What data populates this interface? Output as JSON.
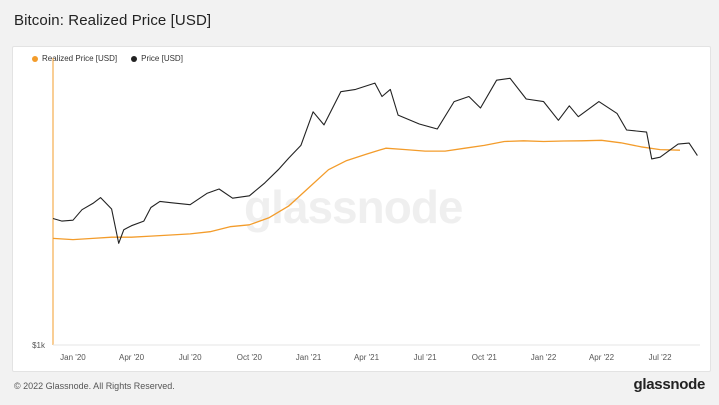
{
  "title": "Bitcoin: Realized Price [USD]",
  "footer": "© 2022 Glassnode. All Rights Reserved.",
  "brand": "glassnode",
  "watermark": "glassnode",
  "colors": {
    "realized": "#f39c2b",
    "price": "#222222",
    "grid": "#eeeeee",
    "axis_text": "#555555"
  },
  "chart_data": {
    "type": "line",
    "title": "Bitcoin: Realized Price [USD]",
    "xlabel": "",
    "ylabel": "",
    "y_scale": "log",
    "ylim": [
      1000,
      80000
    ],
    "y_ticks": [
      {
        "value": 1000,
        "label": "$1k"
      }
    ],
    "xlim": [
      "2019-12-01",
      "2022-09-01"
    ],
    "x_ticks": [
      {
        "date": "2020-01-01",
        "label": "Jan '20"
      },
      {
        "date": "2020-04-01",
        "label": "Apr '20"
      },
      {
        "date": "2020-07-01",
        "label": "Jul '20"
      },
      {
        "date": "2020-10-01",
        "label": "Oct '20"
      },
      {
        "date": "2021-01-01",
        "label": "Jan '21"
      },
      {
        "date": "2021-04-01",
        "label": "Apr '21"
      },
      {
        "date": "2021-07-01",
        "label": "Jul '21"
      },
      {
        "date": "2021-10-01",
        "label": "Oct '21"
      },
      {
        "date": "2022-01-01",
        "label": "Jan '22"
      },
      {
        "date": "2022-04-01",
        "label": "Apr '22"
      },
      {
        "date": "2022-07-01",
        "label": "Jul '22"
      }
    ],
    "legend_position": "top-left",
    "series": [
      {
        "name": "Realized Price [USD]",
        "color": "#f39c2b",
        "points": [
          [
            "2019-12-01",
            5400
          ],
          [
            "2020-01-01",
            5300
          ],
          [
            "2020-02-01",
            5400
          ],
          [
            "2020-03-01",
            5500
          ],
          [
            "2020-04-01",
            5500
          ],
          [
            "2020-05-01",
            5600
          ],
          [
            "2020-06-01",
            5700
          ],
          [
            "2020-07-01",
            5800
          ],
          [
            "2020-08-01",
            6000
          ],
          [
            "2020-09-01",
            6500
          ],
          [
            "2020-10-01",
            6700
          ],
          [
            "2020-11-01",
            7500
          ],
          [
            "2020-12-01",
            9000
          ],
          [
            "2021-01-01",
            12000
          ],
          [
            "2021-02-01",
            16000
          ],
          [
            "2021-03-01",
            18500
          ],
          [
            "2021-04-01",
            20500
          ],
          [
            "2021-05-01",
            22500
          ],
          [
            "2021-06-01",
            22000
          ],
          [
            "2021-07-01",
            21500
          ],
          [
            "2021-08-01",
            21500
          ],
          [
            "2021-09-01",
            22500
          ],
          [
            "2021-10-01",
            23500
          ],
          [
            "2021-11-01",
            25000
          ],
          [
            "2021-12-01",
            25300
          ],
          [
            "2022-01-01",
            25000
          ],
          [
            "2022-02-01",
            25200
          ],
          [
            "2022-03-01",
            25300
          ],
          [
            "2022-04-01",
            25500
          ],
          [
            "2022-05-01",
            24500
          ],
          [
            "2022-06-01",
            23000
          ],
          [
            "2022-07-01",
            22000
          ],
          [
            "2022-08-01",
            21800
          ]
        ]
      },
      {
        "name": "Price [USD]",
        "color": "#222222",
        "points": [
          [
            "2019-12-01",
            7400
          ],
          [
            "2019-12-15",
            7100
          ],
          [
            "2020-01-01",
            7200
          ],
          [
            "2020-01-15",
            8500
          ],
          [
            "2020-02-01",
            9400
          ],
          [
            "2020-02-13",
            10300
          ],
          [
            "2020-03-01",
            8600
          ],
          [
            "2020-03-12",
            5000
          ],
          [
            "2020-03-20",
            6200
          ],
          [
            "2020-04-01",
            6600
          ],
          [
            "2020-04-20",
            7100
          ],
          [
            "2020-05-01",
            8800
          ],
          [
            "2020-05-15",
            9700
          ],
          [
            "2020-06-01",
            9500
          ],
          [
            "2020-07-01",
            9200
          ],
          [
            "2020-07-27",
            11000
          ],
          [
            "2020-08-15",
            11800
          ],
          [
            "2020-09-05",
            10200
          ],
          [
            "2020-10-01",
            10600
          ],
          [
            "2020-10-25",
            13000
          ],
          [
            "2020-11-15",
            16000
          ],
          [
            "2020-12-01",
            19200
          ],
          [
            "2020-12-20",
            23500
          ],
          [
            "2021-01-08",
            40000
          ],
          [
            "2021-01-25",
            32500
          ],
          [
            "2021-02-20",
            55000
          ],
          [
            "2021-03-15",
            57000
          ],
          [
            "2021-04-14",
            63000
          ],
          [
            "2021-04-25",
            51000
          ],
          [
            "2021-05-08",
            57000
          ],
          [
            "2021-05-20",
            38000
          ],
          [
            "2021-06-22",
            33000
          ],
          [
            "2021-07-20",
            30500
          ],
          [
            "2021-08-15",
            47000
          ],
          [
            "2021-09-07",
            51000
          ],
          [
            "2021-09-25",
            42500
          ],
          [
            "2021-10-20",
            66000
          ],
          [
            "2021-11-10",
            68000
          ],
          [
            "2021-12-05",
            49000
          ],
          [
            "2022-01-01",
            47000
          ],
          [
            "2022-01-24",
            35000
          ],
          [
            "2022-02-10",
            44000
          ],
          [
            "2022-02-24",
            37000
          ],
          [
            "2022-03-28",
            47000
          ],
          [
            "2022-04-25",
            39000
          ],
          [
            "2022-05-10",
            30000
          ],
          [
            "2022-06-10",
            29000
          ],
          [
            "2022-06-18",
            19000
          ],
          [
            "2022-07-01",
            19500
          ],
          [
            "2022-07-29",
            24000
          ],
          [
            "2022-08-15",
            24400
          ],
          [
            "2022-08-28",
            20000
          ]
        ]
      }
    ]
  }
}
